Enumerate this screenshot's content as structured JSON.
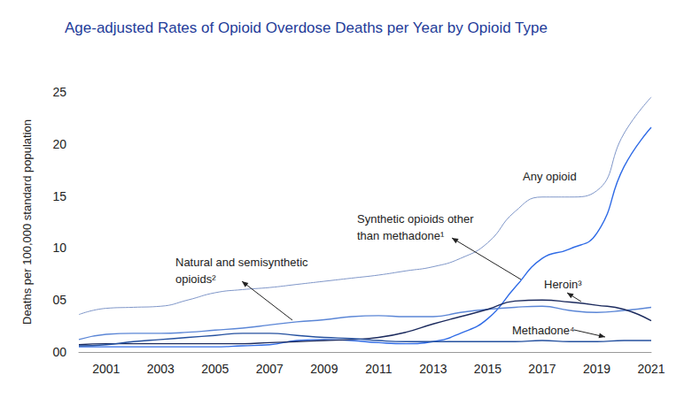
{
  "chart_data": {
    "type": "line",
    "title": "Age-adjusted Rates of Opioid Overdose Deaths per Year by Opioid Type",
    "y_label": "Deaths per 100,000 standard population",
    "x": [
      2000,
      2001,
      2002,
      2003,
      2004,
      2005,
      2006,
      2007,
      2008,
      2009,
      2010,
      2011,
      2012,
      2013,
      2014,
      2015,
      2016,
      2017,
      2018,
      2019,
      2020,
      2021
    ],
    "series": [
      {
        "name": "Any opioid",
        "color": "#7f96c8",
        "values": [
          3.6,
          4.2,
          4.3,
          4.4,
          5.0,
          5.7,
          6.0,
          6.2,
          6.5,
          6.8,
          7.1,
          7.4,
          7.8,
          8.2,
          9.0,
          10.5,
          13.5,
          14.9,
          14.9,
          15.5,
          21.0,
          24.5
        ]
      },
      {
        "name": "Synthetic opioids other than methadone¹",
        "color": "#2f6be6",
        "values": [
          0.5,
          0.5,
          0.5,
          0.5,
          0.5,
          0.5,
          0.6,
          0.7,
          1.1,
          1.2,
          1.1,
          0.9,
          0.8,
          1.0,
          1.8,
          3.2,
          6.2,
          9.0,
          9.9,
          11.4,
          17.8,
          21.6
        ]
      },
      {
        "name": "Natural and semisynthetic opioids²",
        "color": "#5b86d6",
        "values": [
          1.2,
          1.7,
          1.8,
          1.8,
          1.9,
          2.1,
          2.3,
          2.6,
          2.9,
          3.1,
          3.4,
          3.5,
          3.4,
          3.4,
          3.8,
          4.1,
          4.3,
          4.4,
          4.0,
          3.8,
          4.0,
          4.3
        ]
      },
      {
        "name": "Heroin³",
        "color": "#1c2b5e",
        "values": [
          0.7,
          0.8,
          0.8,
          0.8,
          0.8,
          0.8,
          0.8,
          0.9,
          1.0,
          1.1,
          1.2,
          1.4,
          1.9,
          2.7,
          3.4,
          4.1,
          4.9,
          5.0,
          4.8,
          4.5,
          4.1,
          3.0
        ]
      },
      {
        "name": "Methadone⁴",
        "color": "#24509f",
        "values": [
          0.6,
          0.7,
          1.0,
          1.2,
          1.4,
          1.6,
          1.8,
          1.8,
          1.6,
          1.4,
          1.3,
          1.1,
          1.0,
          1.0,
          1.0,
          1.0,
          1.0,
          1.1,
          1.0,
          1.0,
          1.1,
          1.1
        ]
      }
    ],
    "xlim": [
      2000,
      2021
    ],
    "xticks": [
      2001,
      2003,
      2005,
      2007,
      2009,
      2011,
      2013,
      2015,
      2017,
      2019,
      2021
    ],
    "ylim": [
      0,
      25
    ],
    "yticks": [
      {
        "value": 0,
        "label": "00"
      },
      {
        "value": 5,
        "label": "05"
      },
      10,
      15,
      20,
      25
    ],
    "grid": false
  }
}
